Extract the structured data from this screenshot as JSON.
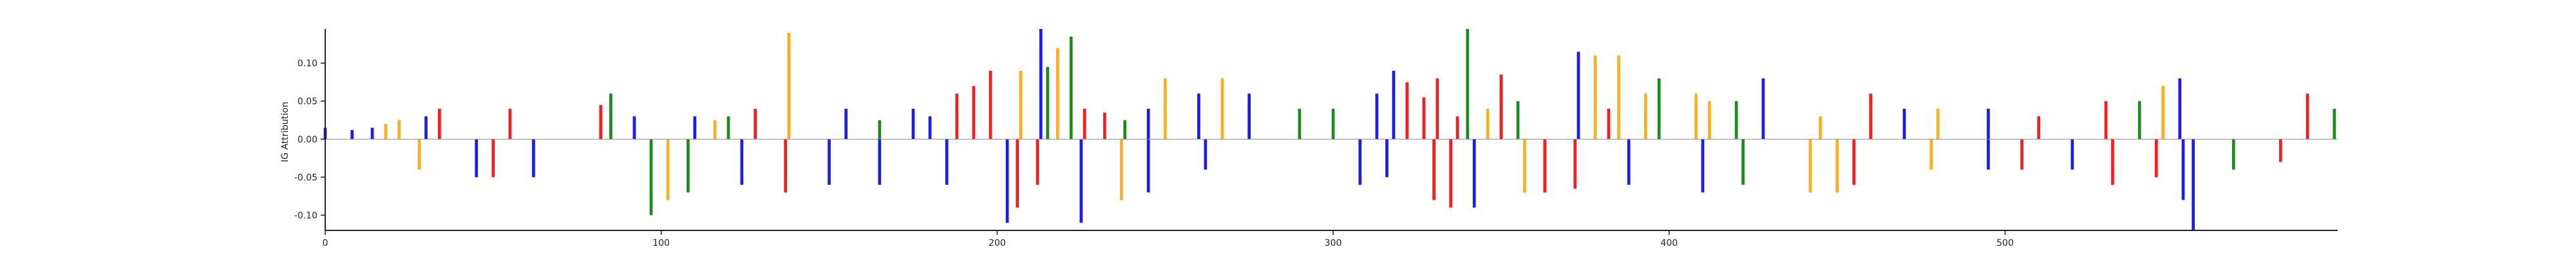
{
  "chart_data": {
    "type": "sequence-logo attribution",
    "ylabel": "IG Attribution",
    "xlabel": "",
    "title": "",
    "xlim": [
      0,
      599
    ],
    "ylim": [
      -0.12,
      0.145
    ],
    "x_ticks": [
      0,
      100,
      200,
      300,
      400,
      500
    ],
    "y_ticks": [
      -0.1,
      -0.05,
      0.0,
      0.05,
      0.1
    ],
    "grid": false,
    "colors": {
      "A": "#008000",
      "C": "#0000ff",
      "G": "#ffa500",
      "T": "#ff0000"
    },
    "peaks": [
      {
        "x": 0,
        "y": 0.015,
        "base": "C"
      },
      {
        "x": 8,
        "y": 0.012,
        "base": "C"
      },
      {
        "x": 14,
        "y": 0.015,
        "base": "C"
      },
      {
        "x": 18,
        "y": 0.02,
        "base": "G"
      },
      {
        "x": 22,
        "y": 0.025,
        "base": "G"
      },
      {
        "x": 30,
        "y": 0.03,
        "base": "C"
      },
      {
        "x": 34,
        "y": 0.04,
        "base": "T"
      },
      {
        "x": 55,
        "y": 0.04,
        "base": "T"
      },
      {
        "x": 82,
        "y": 0.045,
        "base": "T"
      },
      {
        "x": 85,
        "y": 0.06,
        "base": "A"
      },
      {
        "x": 92,
        "y": 0.03,
        "base": "C"
      },
      {
        "x": 110,
        "y": 0.03,
        "base": "C"
      },
      {
        "x": 116,
        "y": 0.025,
        "base": "G"
      },
      {
        "x": 120,
        "y": 0.03,
        "base": "A"
      },
      {
        "x": 128,
        "y": 0.04,
        "base": "T"
      },
      {
        "x": 138,
        "y": 0.14,
        "base": "G"
      },
      {
        "x": 155,
        "y": 0.04,
        "base": "C"
      },
      {
        "x": 165,
        "y": 0.025,
        "base": "A"
      },
      {
        "x": 175,
        "y": 0.04,
        "base": "C"
      },
      {
        "x": 180,
        "y": 0.03,
        "base": "C"
      },
      {
        "x": 188,
        "y": 0.06,
        "base": "T"
      },
      {
        "x": 193,
        "y": 0.07,
        "base": "T"
      },
      {
        "x": 198,
        "y": 0.09,
        "base": "T"
      },
      {
        "x": 207,
        "y": 0.09,
        "base": "G"
      },
      {
        "x": 213,
        "y": 0.145,
        "base": "C"
      },
      {
        "x": 215,
        "y": 0.095,
        "base": "A"
      },
      {
        "x": 218,
        "y": 0.12,
        "base": "G"
      },
      {
        "x": 222,
        "y": 0.135,
        "base": "A"
      },
      {
        "x": 226,
        "y": 0.04,
        "base": "T"
      },
      {
        "x": 232,
        "y": 0.035,
        "base": "T"
      },
      {
        "x": 238,
        "y": 0.025,
        "base": "A"
      },
      {
        "x": 245,
        "y": 0.04,
        "base": "C"
      },
      {
        "x": 250,
        "y": 0.08,
        "base": "G"
      },
      {
        "x": 260,
        "y": 0.06,
        "base": "C"
      },
      {
        "x": 267,
        "y": 0.08,
        "base": "G"
      },
      {
        "x": 275,
        "y": 0.06,
        "base": "C"
      },
      {
        "x": 290,
        "y": 0.04,
        "base": "A"
      },
      {
        "x": 300,
        "y": 0.04,
        "base": "A"
      },
      {
        "x": 313,
        "y": 0.06,
        "base": "C"
      },
      {
        "x": 318,
        "y": 0.09,
        "base": "C"
      },
      {
        "x": 322,
        "y": 0.075,
        "base": "T"
      },
      {
        "x": 327,
        "y": 0.055,
        "base": "T"
      },
      {
        "x": 331,
        "y": 0.08,
        "base": "T"
      },
      {
        "x": 337,
        "y": 0.03,
        "base": "T"
      },
      {
        "x": 340,
        "y": 0.145,
        "base": "A"
      },
      {
        "x": 346,
        "y": 0.04,
        "base": "G"
      },
      {
        "x": 350,
        "y": 0.085,
        "base": "T"
      },
      {
        "x": 355,
        "y": 0.05,
        "base": "A"
      },
      {
        "x": 373,
        "y": 0.115,
        "base": "C"
      },
      {
        "x": 378,
        "y": 0.11,
        "base": "G"
      },
      {
        "x": 382,
        "y": 0.04,
        "base": "T"
      },
      {
        "x": 385,
        "y": 0.11,
        "base": "G"
      },
      {
        "x": 393,
        "y": 0.06,
        "base": "G"
      },
      {
        "x": 397,
        "y": 0.08,
        "base": "A"
      },
      {
        "x": 408,
        "y": 0.06,
        "base": "G"
      },
      {
        "x": 412,
        "y": 0.05,
        "base": "G"
      },
      {
        "x": 420,
        "y": 0.05,
        "base": "A"
      },
      {
        "x": 428,
        "y": 0.08,
        "base": "C"
      },
      {
        "x": 445,
        "y": 0.03,
        "base": "G"
      },
      {
        "x": 460,
        "y": 0.06,
        "base": "T"
      },
      {
        "x": 470,
        "y": 0.04,
        "base": "C"
      },
      {
        "x": 480,
        "y": 0.04,
        "base": "G"
      },
      {
        "x": 495,
        "y": 0.04,
        "base": "C"
      },
      {
        "x": 510,
        "y": 0.03,
        "base": "T"
      },
      {
        "x": 530,
        "y": 0.05,
        "base": "T"
      },
      {
        "x": 540,
        "y": 0.05,
        "base": "A"
      },
      {
        "x": 547,
        "y": 0.07,
        "base": "G"
      },
      {
        "x": 552,
        "y": 0.08,
        "base": "C"
      },
      {
        "x": 590,
        "y": 0.06,
        "base": "T"
      },
      {
        "x": 598,
        "y": 0.04,
        "base": "A"
      },
      {
        "x": 28,
        "y": -0.04,
        "base": "G"
      },
      {
        "x": 45,
        "y": -0.05,
        "base": "C"
      },
      {
        "x": 50,
        "y": -0.05,
        "base": "T"
      },
      {
        "x": 62,
        "y": -0.05,
        "base": "C"
      },
      {
        "x": 97,
        "y": -0.1,
        "base": "A"
      },
      {
        "x": 102,
        "y": -0.08,
        "base": "G"
      },
      {
        "x": 108,
        "y": -0.07,
        "base": "A"
      },
      {
        "x": 124,
        "y": -0.06,
        "base": "C"
      },
      {
        "x": 137,
        "y": -0.07,
        "base": "T"
      },
      {
        "x": 150,
        "y": -0.06,
        "base": "C"
      },
      {
        "x": 165,
        "y": -0.06,
        "base": "C"
      },
      {
        "x": 185,
        "y": -0.06,
        "base": "C"
      },
      {
        "x": 203,
        "y": -0.11,
        "base": "C"
      },
      {
        "x": 206,
        "y": -0.09,
        "base": "T"
      },
      {
        "x": 212,
        "y": -0.06,
        "base": "T"
      },
      {
        "x": 225,
        "y": -0.11,
        "base": "C"
      },
      {
        "x": 237,
        "y": -0.08,
        "base": "G"
      },
      {
        "x": 245,
        "y": -0.07,
        "base": "C"
      },
      {
        "x": 262,
        "y": -0.04,
        "base": "C"
      },
      {
        "x": 308,
        "y": -0.06,
        "base": "C"
      },
      {
        "x": 316,
        "y": -0.05,
        "base": "C"
      },
      {
        "x": 330,
        "y": -0.08,
        "base": "T"
      },
      {
        "x": 335,
        "y": -0.09,
        "base": "T"
      },
      {
        "x": 342,
        "y": -0.09,
        "base": "C"
      },
      {
        "x": 357,
        "y": -0.07,
        "base": "G"
      },
      {
        "x": 363,
        "y": -0.07,
        "base": "T"
      },
      {
        "x": 372,
        "y": -0.065,
        "base": "T"
      },
      {
        "x": 388,
        "y": -0.06,
        "base": "C"
      },
      {
        "x": 410,
        "y": -0.07,
        "base": "C"
      },
      {
        "x": 422,
        "y": -0.06,
        "base": "A"
      },
      {
        "x": 442,
        "y": -0.07,
        "base": "G"
      },
      {
        "x": 450,
        "y": -0.07,
        "base": "G"
      },
      {
        "x": 455,
        "y": -0.06,
        "base": "T"
      },
      {
        "x": 478,
        "y": -0.04,
        "base": "G"
      },
      {
        "x": 495,
        "y": -0.04,
        "base": "C"
      },
      {
        "x": 505,
        "y": -0.04,
        "base": "T"
      },
      {
        "x": 520,
        "y": -0.04,
        "base": "C"
      },
      {
        "x": 532,
        "y": -0.06,
        "base": "T"
      },
      {
        "x": 545,
        "y": -0.05,
        "base": "T"
      },
      {
        "x": 553,
        "y": -0.08,
        "base": "C"
      },
      {
        "x": 556,
        "y": -0.12,
        "base": "C"
      },
      {
        "x": 568,
        "y": -0.04,
        "base": "A"
      },
      {
        "x": 582,
        "y": -0.03,
        "base": "T"
      }
    ]
  }
}
